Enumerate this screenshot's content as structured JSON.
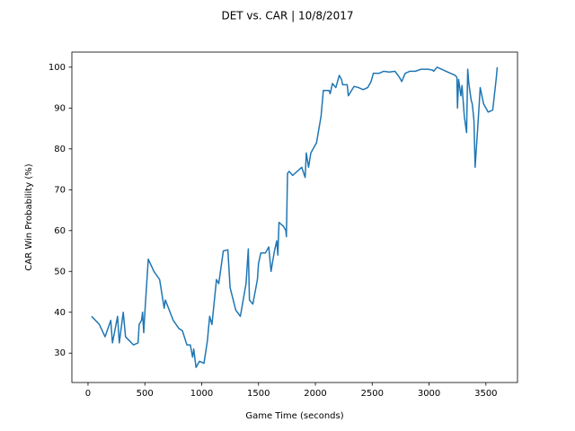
{
  "chart_data": {
    "type": "line",
    "title": "DET vs. CAR | 10/8/2017",
    "x_label": "Game Time (seconds)",
    "y_label": "CAR Win Probability (%)",
    "x": [
      32,
      100,
      150,
      200,
      215,
      260,
      275,
      310,
      330,
      400,
      440,
      450,
      470,
      480,
      490,
      500,
      530,
      580,
      630,
      670,
      680,
      750,
      800,
      830,
      870,
      900,
      920,
      930,
      950,
      980,
      1020,
      1050,
      1070,
      1090,
      1130,
      1150,
      1190,
      1230,
      1250,
      1300,
      1340,
      1390,
      1410,
      1420,
      1450,
      1490,
      1500,
      1520,
      1560,
      1590,
      1610,
      1640,
      1660,
      1670,
      1680,
      1720,
      1740,
      1745,
      1755,
      1770,
      1800,
      1880,
      1910,
      1920,
      1940,
      1960,
      2010,
      2050,
      2070,
      2120,
      2130,
      2150,
      2180,
      2210,
      2230,
      2240,
      2280,
      2290,
      2340,
      2380,
      2420,
      2460,
      2490,
      2510,
      2560,
      2600,
      2650,
      2700,
      2740,
      2760,
      2790,
      2830,
      2880,
      2930,
      2990,
      3030,
      3040,
      3070,
      3150,
      3230,
      3245,
      3250,
      3260,
      3280,
      3290,
      3310,
      3330,
      3340,
      3350,
      3370,
      3380,
      3395,
      3405,
      3430,
      3450,
      3480,
      3520,
      3560,
      3590,
      3600
    ],
    "series": [
      {
        "name": "CAR",
        "color": "#1f77b4",
        "values": [
          39,
          37,
          34,
          38,
          32.5,
          39,
          32.5,
          40,
          34,
          32,
          32.5,
          37,
          38,
          40,
          35,
          40,
          53,
          50,
          48,
          41,
          43,
          38,
          36,
          35.5,
          32,
          32,
          29,
          31,
          26.5,
          28,
          27.5,
          33,
          39,
          37,
          48,
          47,
          55,
          55.3,
          46,
          40.5,
          39,
          47,
          55.5,
          43,
          42,
          48,
          52,
          54.5,
          54.5,
          56,
          50,
          55,
          57.5,
          54,
          62,
          61,
          60,
          58.5,
          74,
          74.5,
          73.5,
          75.5,
          73,
          79,
          75.5,
          79,
          81.5,
          88,
          94.3,
          94.3,
          93.5,
          96,
          95,
          98,
          97,
          95.7,
          95.7,
          93,
          95.3,
          95,
          94.5,
          95,
          96.5,
          98.5,
          98.5,
          99,
          98.8,
          99,
          97.5,
          96.5,
          98.5,
          99,
          99,
          99.5,
          99.5,
          99.3,
          99,
          100,
          99,
          98,
          97.5,
          90,
          97,
          93,
          95.5,
          88,
          84,
          99.5,
          96,
          92,
          91,
          87,
          75.5,
          86,
          95,
          91,
          89,
          89.5,
          97,
          100
        ]
      }
    ],
    "xlim": [
      -142,
      3778
    ],
    "ylim": [
      22.8,
      103.7
    ],
    "xticks": [
      0,
      500,
      1000,
      1500,
      2000,
      2500,
      3000,
      3500
    ],
    "yticks": [
      30,
      40,
      50,
      60,
      70,
      80,
      90,
      100
    ]
  }
}
